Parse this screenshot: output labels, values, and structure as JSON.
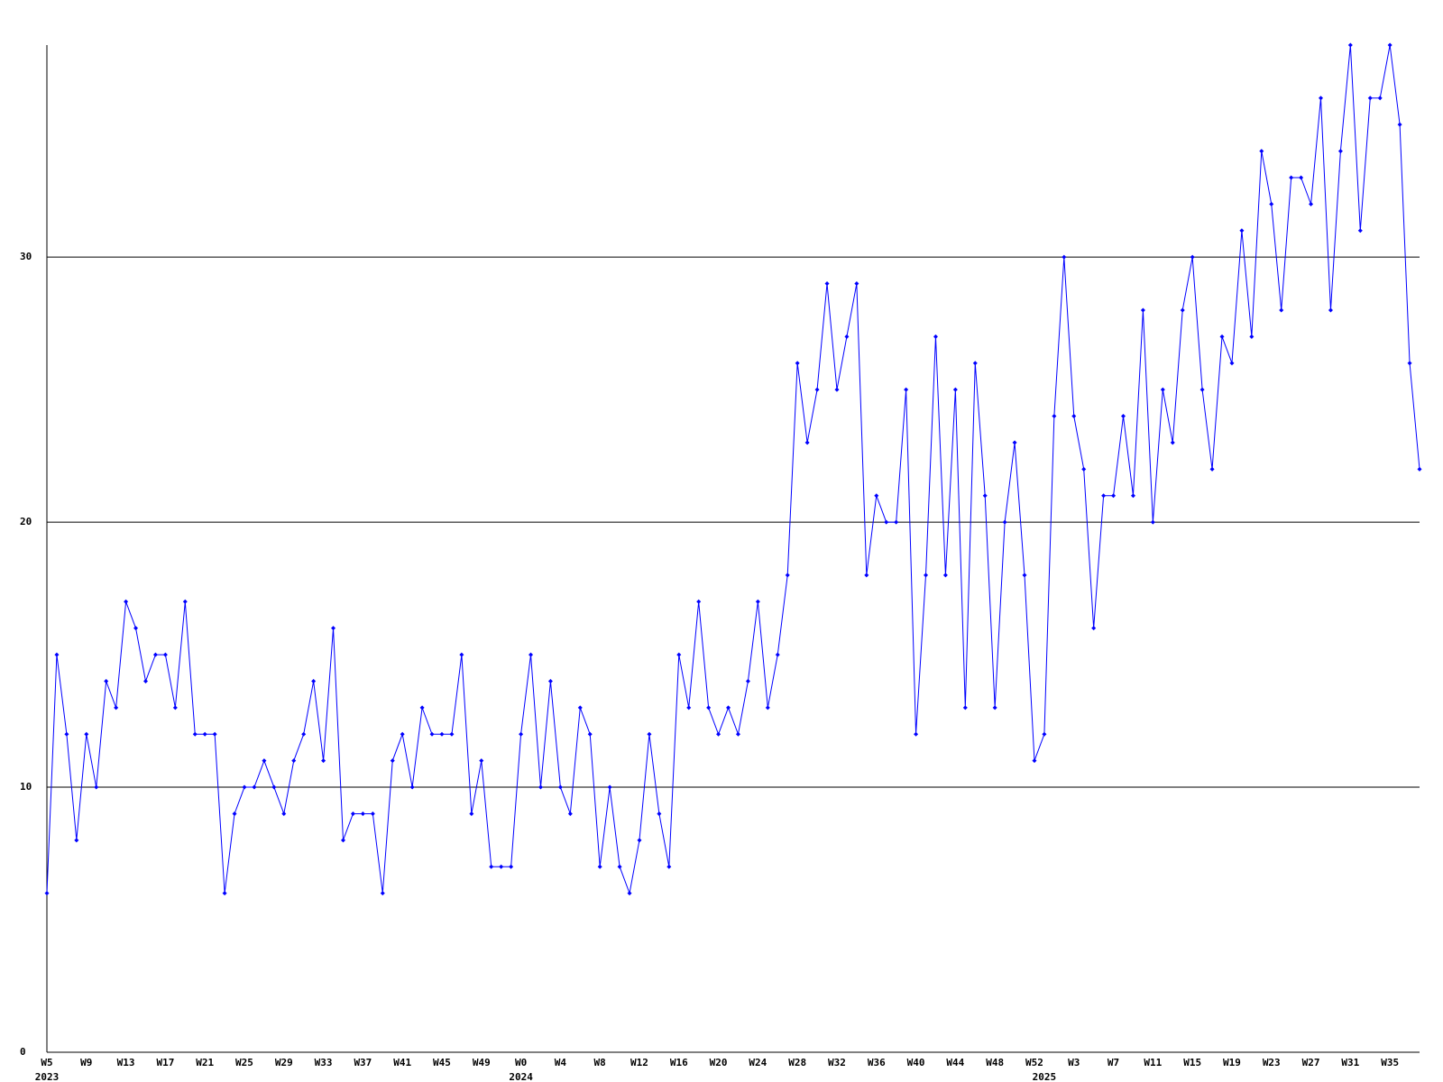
{
  "chart_data": {
    "type": "line",
    "categories": [
      "W5",
      null,
      null,
      null,
      "W9",
      null,
      null,
      null,
      "W13",
      null,
      null,
      null,
      "W17",
      null,
      null,
      null,
      "W21",
      null,
      null,
      null,
      "W25",
      null,
      null,
      null,
      "W29",
      null,
      null,
      null,
      "W33",
      null,
      null,
      null,
      "W37",
      null,
      null,
      null,
      "W41",
      null,
      null,
      null,
      "W45",
      null,
      null,
      null,
      "W49",
      null,
      null,
      null,
      "W0",
      null,
      null,
      null,
      "W4",
      null,
      null,
      null,
      "W8",
      null,
      null,
      null,
      "W12",
      null,
      null,
      null,
      "W16",
      null,
      null,
      null,
      "W20",
      null,
      null,
      null,
      "W24",
      null,
      null,
      null,
      "W28",
      null,
      null,
      null,
      "W32",
      null,
      null,
      null,
      "W36",
      null,
      null,
      null,
      "W40",
      null,
      null,
      null,
      "W44",
      null,
      null,
      null,
      "W48",
      null,
      null,
      null,
      "W52",
      null,
      null,
      null,
      "W3",
      null,
      null,
      null,
      "W7",
      null,
      null,
      null,
      "W11",
      null,
      null,
      null,
      "W15",
      null,
      null,
      null,
      "W19",
      null,
      null,
      null,
      "W23",
      null,
      null,
      null,
      "W27",
      null,
      null,
      null,
      "W31",
      null,
      null,
      null,
      "W35",
      null,
      null,
      null
    ],
    "year_labels": [
      {
        "at": 0,
        "label": "2023"
      },
      {
        "at": 48,
        "label": "2024"
      },
      {
        "at": 101,
        "label": "2025"
      }
    ],
    "values": [
      6,
      15,
      12,
      8,
      12,
      10,
      14,
      13,
      17,
      16,
      14,
      15,
      15,
      13,
      17,
      12,
      12,
      12,
      6,
      9,
      10,
      10,
      11,
      10,
      9,
      11,
      12,
      14,
      11,
      16,
      8,
      9,
      9,
      9,
      6,
      11,
      12,
      10,
      13,
      12,
      12,
      12,
      15,
      9,
      11,
      7,
      7,
      7,
      12,
      15,
      10,
      14,
      10,
      9,
      13,
      12,
      7,
      10,
      7,
      6,
      8,
      12,
      9,
      7,
      15,
      13,
      17,
      13,
      12,
      13,
      12,
      14,
      17,
      13,
      15,
      18,
      26,
      23,
      25,
      29,
      25,
      27,
      29,
      18,
      21,
      20,
      20,
      25,
      12,
      18,
      27,
      18,
      25,
      13,
      26,
      21,
      13,
      20,
      23,
      18,
      11,
      12,
      24,
      30,
      24,
      22,
      16,
      21,
      21,
      24,
      21,
      28,
      20,
      25,
      23,
      28,
      30,
      25,
      22,
      27,
      26,
      31,
      27,
      34,
      32,
      28,
      33,
      33,
      32,
      36,
      28,
      34,
      38,
      31,
      36,
      36,
      38,
      35,
      26,
      22
    ],
    "color": "#0000ff",
    "ylim": [
      0,
      38
    ],
    "yticks": [
      0,
      10,
      20,
      30
    ],
    "grid": true
  }
}
